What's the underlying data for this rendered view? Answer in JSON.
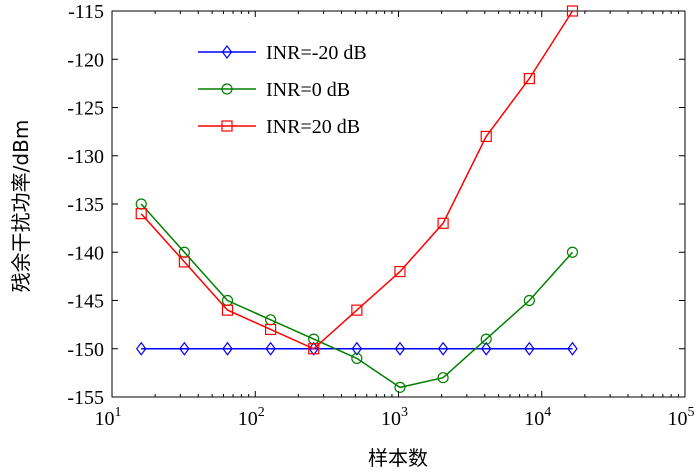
{
  "chart_data": {
    "type": "line",
    "xscale": "log",
    "xlim": [
      10,
      100000
    ],
    "ylim": [
      -155,
      -115
    ],
    "xlabel": "样本数",
    "ylabel": "残余干扰功率/dBm",
    "x_ticks": [
      {
        "value": 10,
        "base": "10",
        "exp": "1"
      },
      {
        "value": 100,
        "base": "10",
        "exp": "2"
      },
      {
        "value": 1000,
        "base": "10",
        "exp": "3"
      },
      {
        "value": 10000,
        "base": "10",
        "exp": "4"
      },
      {
        "value": 100000,
        "base": "10",
        "exp": "5"
      }
    ],
    "y_ticks": [
      {
        "value": -115,
        "label": "-115"
      },
      {
        "value": -120,
        "label": "-120"
      },
      {
        "value": -125,
        "label": "-125"
      },
      {
        "value": -130,
        "label": "-130"
      },
      {
        "value": -135,
        "label": "-135"
      },
      {
        "value": -140,
        "label": "-140"
      },
      {
        "value": -145,
        "label": "-145"
      },
      {
        "value": -150,
        "label": "-150"
      },
      {
        "value": -155,
        "label": "-155"
      }
    ],
    "x": [
      16,
      32,
      64,
      128,
      256,
      512,
      1024,
      2048,
      4096,
      8192,
      16384
    ],
    "series": [
      {
        "name": "INR=-20 dB",
        "color": "#0000ff",
        "marker": "diamond",
        "values": [
          -150,
          -150,
          -150,
          -150,
          -150,
          -150,
          -150,
          -150,
          -150,
          -150,
          -150
        ]
      },
      {
        "name": "INR=0 dB",
        "color": "#008000",
        "marker": "circle",
        "values": [
          -135,
          -140,
          -145,
          -147,
          -149,
          -151,
          -154,
          -153,
          -149,
          -145,
          -140
        ]
      },
      {
        "name": "INR=20 dB",
        "color": "#ff0000",
        "marker": "square",
        "values": [
          -136,
          -141,
          -146,
          -148,
          -150,
          -146,
          -142,
          -137,
          -128,
          -122,
          -115
        ]
      }
    ],
    "legend_position": "top-left",
    "grid": false
  }
}
